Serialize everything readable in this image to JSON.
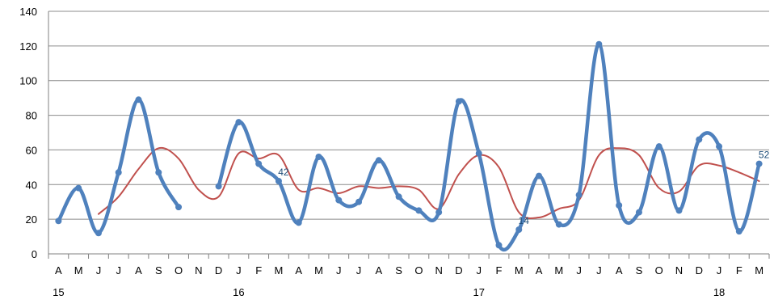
{
  "chart_data": {
    "type": "line",
    "ylim": [
      0,
      140
    ],
    "y_ticks": [
      0,
      20,
      40,
      60,
      80,
      100,
      120,
      140
    ],
    "grid": "horizontal",
    "categories": [
      "A",
      "M",
      "J",
      "J",
      "A",
      "S",
      "O",
      "N",
      "D",
      "J",
      "F",
      "M",
      "A",
      "M",
      "J",
      "J",
      "A",
      "S",
      "O",
      "N",
      "D",
      "J",
      "F",
      "M",
      "A",
      "M",
      "J",
      "J",
      "A",
      "S",
      "O",
      "N",
      "D",
      "J",
      "F",
      "M"
    ],
    "year_labels": [
      {
        "index": 0,
        "label": "15"
      },
      {
        "index": 9,
        "label": "16"
      },
      {
        "index": 21,
        "label": "17"
      },
      {
        "index": 33,
        "label": "18"
      }
    ],
    "series": [
      {
        "color": "#4f81bd",
        "smooth": true,
        "markers": true,
        "values": [
          19,
          38,
          12,
          47,
          89,
          47,
          27,
          null,
          39,
          76,
          52,
          42,
          18,
          56,
          31,
          30,
          54,
          33,
          25,
          24,
          88,
          58,
          5,
          14,
          45,
          17,
          34,
          121,
          28,
          24,
          62,
          25,
          66,
          62,
          13,
          52
        ]
      },
      {
        "color": "#c0504d",
        "smooth": true,
        "markers": false,
        "values": [
          null,
          null,
          23,
          33,
          49,
          61,
          55,
          37,
          33,
          58,
          55,
          57,
          37,
          38,
          35,
          39,
          38,
          39,
          37,
          26,
          46,
          57,
          50,
          24,
          21,
          26,
          31,
          57,
          61,
          57,
          38,
          36,
          51,
          51,
          47,
          42
        ]
      }
    ],
    "data_labels": [
      {
        "series": 0,
        "index": 11,
        "text": "42"
      },
      {
        "series": 0,
        "index": 23,
        "text": "14"
      },
      {
        "series": 0,
        "index": 35,
        "text": "52"
      }
    ]
  }
}
